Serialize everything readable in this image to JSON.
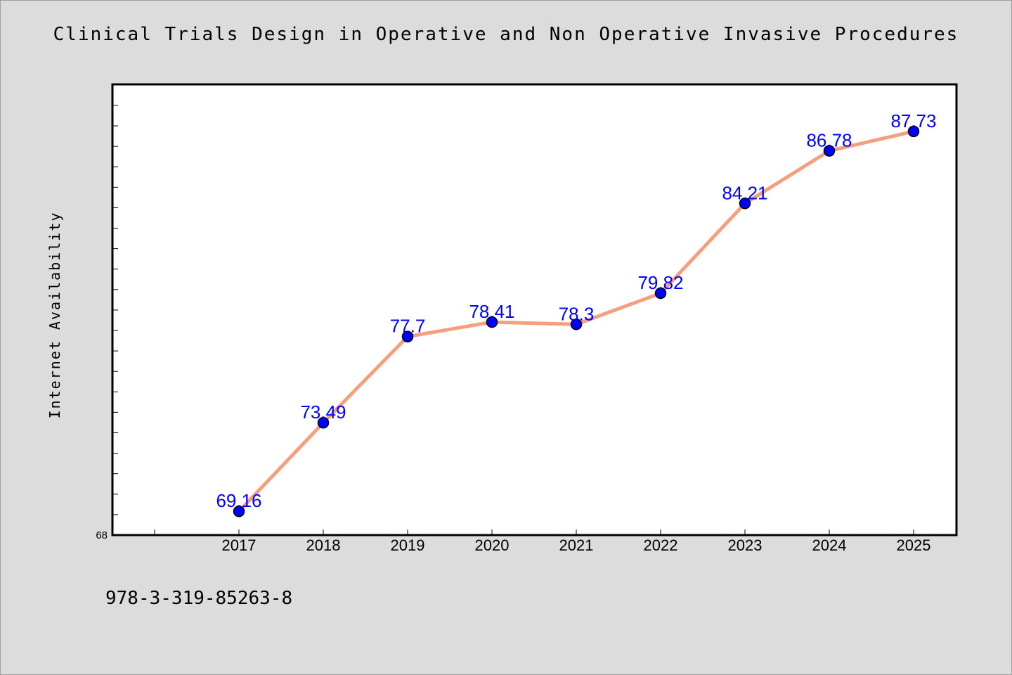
{
  "chart_data": {
    "type": "line",
    "title": "Clinical Trials Design in Operative and Non Operative Invasive Procedures",
    "xlabel": "",
    "ylabel": "Internet Availability",
    "categories": [
      "2017",
      "2018",
      "2019",
      "2020",
      "2021",
      "2022",
      "2023",
      "2024",
      "2025"
    ],
    "series": [
      {
        "values": [
          69.16,
          73.49,
          77.7,
          78.41,
          78.3,
          79.82,
          84.21,
          86.78,
          87.73
        ],
        "labels": [
          "69.16",
          "73.49",
          "77.7",
          "78.41",
          "78.3",
          "79.82",
          "84.21",
          "86.78",
          "87.73"
        ],
        "line_color": "#f4a07f",
        "marker_color": "#0000ff"
      }
    ],
    "ylim": [
      68,
      90
    ],
    "ytick_labels": [
      "68"
    ],
    "grid": false,
    "legend": "none",
    "plot_background": "#ffffff",
    "figure_background": "#dcdcdc"
  },
  "footer": {
    "isbn": "978-3-319-85263-8"
  }
}
